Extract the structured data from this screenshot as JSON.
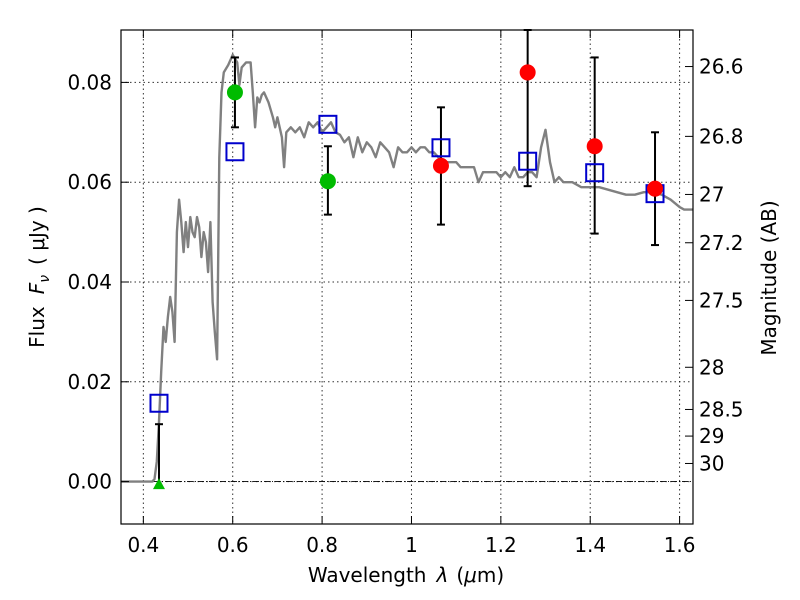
{
  "chart_data": {
    "type": "scatter",
    "title": "",
    "xlabel_text": "Wavelength",
    "xlabel_symbol": "λ",
    "xlabel_unit_open": "(",
    "xlabel_unit_mu": "μ",
    "xlabel_unit_rest": "m)",
    "ylabel_text": "Flux",
    "ylabel_symbol": "F",
    "ylabel_subscript": "ν",
    "ylabel_unit": "( μJy )",
    "ylabel_right": "Magnitude (AB)",
    "xlim": [
      0.35,
      1.63
    ],
    "ylim": [
      -0.0085,
      0.0905
    ],
    "xticks": [
      0.4,
      0.6,
      0.8,
      1.0,
      1.2,
      1.4,
      1.6
    ],
    "xtick_labels": [
      "0.4",
      "0.6",
      "0.8",
      "1",
      "1.2",
      "1.4",
      "1.6"
    ],
    "yticks": [
      0.0,
      0.02,
      0.04,
      0.06,
      0.08
    ],
    "ytick_labels": [
      "0.00",
      "0.02",
      "0.04",
      "0.06",
      "0.08"
    ],
    "right_ticks": [
      {
        "label": "26.6",
        "mag": 26.6
      },
      {
        "label": "26.8",
        "mag": 26.8
      },
      {
        "label": "27",
        "mag": 27.0
      },
      {
        "label": "27.2",
        "mag": 27.2
      },
      {
        "label": "27.5",
        "mag": 27.5
      },
      {
        "label": "28",
        "mag": 28.0
      },
      {
        "label": "28.5",
        "mag": 28.5
      },
      {
        "label": "29",
        "mag": 29.0
      },
      {
        "label": "30",
        "mag": 30.0
      }
    ],
    "grid": true,
    "colors": {
      "model": "#808080",
      "green": "#00bb00",
      "red": "#ff0000",
      "blue": "#0000cc",
      "errorbar": "#000000"
    },
    "model_spectrum": {
      "name": "model SED",
      "points": [
        [
          0.35,
          0.0
        ],
        [
          0.42,
          0.0
        ],
        [
          0.425,
          0.0005
        ],
        [
          0.43,
          0.004
        ],
        [
          0.435,
          0.012
        ],
        [
          0.44,
          0.022
        ],
        [
          0.445,
          0.031
        ],
        [
          0.45,
          0.028
        ],
        [
          0.455,
          0.033
        ],
        [
          0.46,
          0.037
        ],
        [
          0.465,
          0.034
        ],
        [
          0.47,
          0.028
        ],
        [
          0.475,
          0.05
        ],
        [
          0.48,
          0.0565
        ],
        [
          0.485,
          0.052
        ],
        [
          0.49,
          0.046
        ],
        [
          0.495,
          0.052
        ],
        [
          0.5,
          0.047
        ],
        [
          0.505,
          0.053
        ],
        [
          0.51,
          0.05
        ],
        [
          0.515,
          0.049
        ],
        [
          0.52,
          0.053
        ],
        [
          0.525,
          0.051
        ],
        [
          0.53,
          0.045
        ],
        [
          0.535,
          0.05
        ],
        [
          0.54,
          0.048
        ],
        [
          0.545,
          0.042
        ],
        [
          0.55,
          0.052
        ],
        [
          0.555,
          0.036
        ],
        [
          0.56,
          0.03
        ],
        [
          0.565,
          0.0245
        ],
        [
          0.57,
          0.065
        ],
        [
          0.575,
          0.078
        ],
        [
          0.58,
          0.082
        ],
        [
          0.59,
          0.0835
        ],
        [
          0.6,
          0.0855
        ],
        [
          0.61,
          0.084
        ],
        [
          0.615,
          0.0795
        ],
        [
          0.62,
          0.083
        ],
        [
          0.63,
          0.084
        ],
        [
          0.64,
          0.084
        ],
        [
          0.645,
          0.078
        ],
        [
          0.65,
          0.071
        ],
        [
          0.655,
          0.077
        ],
        [
          0.66,
          0.076
        ],
        [
          0.665,
          0.0775
        ],
        [
          0.67,
          0.078
        ],
        [
          0.68,
          0.076
        ],
        [
          0.69,
          0.073
        ],
        [
          0.695,
          0.071
        ],
        [
          0.7,
          0.073
        ],
        [
          0.71,
          0.069
        ],
        [
          0.715,
          0.063
        ],
        [
          0.72,
          0.07
        ],
        [
          0.73,
          0.071
        ],
        [
          0.74,
          0.07
        ],
        [
          0.75,
          0.071
        ],
        [
          0.76,
          0.069
        ],
        [
          0.77,
          0.072
        ],
        [
          0.78,
          0.071
        ],
        [
          0.79,
          0.072
        ],
        [
          0.8,
          0.07
        ],
        [
          0.81,
          0.071
        ],
        [
          0.82,
          0.072
        ],
        [
          0.83,
          0.07
        ],
        [
          0.84,
          0.0695
        ],
        [
          0.85,
          0.068
        ],
        [
          0.86,
          0.069
        ],
        [
          0.87,
          0.065
        ],
        [
          0.88,
          0.069
        ],
        [
          0.89,
          0.066
        ],
        [
          0.9,
          0.068
        ],
        [
          0.91,
          0.067
        ],
        [
          0.92,
          0.065
        ],
        [
          0.93,
          0.068
        ],
        [
          0.94,
          0.067
        ],
        [
          0.95,
          0.066
        ],
        [
          0.96,
          0.063
        ],
        [
          0.97,
          0.067
        ],
        [
          0.98,
          0.066
        ],
        [
          0.99,
          0.066
        ],
        [
          1.0,
          0.067
        ],
        [
          1.01,
          0.066
        ],
        [
          1.02,
          0.067
        ],
        [
          1.03,
          0.067
        ],
        [
          1.04,
          0.066
        ],
        [
          1.05,
          0.066
        ],
        [
          1.06,
          0.065
        ],
        [
          1.07,
          0.064
        ],
        [
          1.08,
          0.064
        ],
        [
          1.09,
          0.064
        ],
        [
          1.1,
          0.064
        ],
        [
          1.11,
          0.063
        ],
        [
          1.12,
          0.063
        ],
        [
          1.13,
          0.063
        ],
        [
          1.14,
          0.063
        ],
        [
          1.15,
          0.06
        ],
        [
          1.16,
          0.062
        ],
        [
          1.17,
          0.062
        ],
        [
          1.18,
          0.062
        ],
        [
          1.19,
          0.062
        ],
        [
          1.2,
          0.061
        ],
        [
          1.21,
          0.062
        ],
        [
          1.22,
          0.061
        ],
        [
          1.23,
          0.063
        ],
        [
          1.24,
          0.061
        ],
        [
          1.25,
          0.061
        ],
        [
          1.26,
          0.062
        ],
        [
          1.27,
          0.062
        ],
        [
          1.28,
          0.061
        ],
        [
          1.29,
          0.067
        ],
        [
          1.3,
          0.0705
        ],
        [
          1.31,
          0.064
        ],
        [
          1.32,
          0.06
        ],
        [
          1.33,
          0.061
        ],
        [
          1.34,
          0.06
        ],
        [
          1.35,
          0.06
        ],
        [
          1.36,
          0.06
        ],
        [
          1.38,
          0.059
        ],
        [
          1.4,
          0.059
        ],
        [
          1.42,
          0.059
        ],
        [
          1.44,
          0.0585
        ],
        [
          1.46,
          0.058
        ],
        [
          1.48,
          0.0575
        ],
        [
          1.5,
          0.0575
        ],
        [
          1.52,
          0.058
        ],
        [
          1.54,
          0.058
        ],
        [
          1.56,
          0.0575
        ],
        [
          1.58,
          0.0565
        ],
        [
          1.6,
          0.055
        ],
        [
          1.61,
          0.0545
        ],
        [
          1.63,
          0.0545
        ]
      ]
    },
    "series": [
      {
        "name": "green detections",
        "marker": "circle",
        "color": "green",
        "points": [
          {
            "x": 0.605,
            "y": 0.078,
            "err_lo": 0.071,
            "err_hi": 0.085
          },
          {
            "x": 0.813,
            "y": 0.0602,
            "err_lo": 0.0535,
            "err_hi": 0.0672
          }
        ]
      },
      {
        "name": "red detections",
        "marker": "circle",
        "color": "red",
        "points": [
          {
            "x": 1.066,
            "y": 0.0633,
            "err_lo": 0.0515,
            "err_hi": 0.075
          },
          {
            "x": 1.26,
            "y": 0.082,
            "err_lo": 0.0592,
            "err_hi": 0.0905
          },
          {
            "x": 1.41,
            "y": 0.0672,
            "err_lo": 0.0497,
            "err_hi": 0.085
          },
          {
            "x": 1.545,
            "y": 0.0587,
            "err_lo": 0.0474,
            "err_hi": 0.07
          }
        ]
      },
      {
        "name": "upper limit",
        "marker": "triangle",
        "color": "green",
        "points": [
          {
            "x": 0.435,
            "y": -0.0005,
            "err_lo": -0.0005,
            "err_hi": 0.0115
          }
        ]
      },
      {
        "name": "model photometry",
        "marker": "open-square",
        "color": "blue",
        "points": [
          {
            "x": 0.435,
            "y": 0.0157
          },
          {
            "x": 0.605,
            "y": 0.0661
          },
          {
            "x": 0.813,
            "y": 0.0716
          },
          {
            "x": 1.066,
            "y": 0.0669
          },
          {
            "x": 1.26,
            "y": 0.0642
          },
          {
            "x": 1.41,
            "y": 0.0619
          },
          {
            "x": 1.545,
            "y": 0.0577
          }
        ]
      }
    ]
  }
}
